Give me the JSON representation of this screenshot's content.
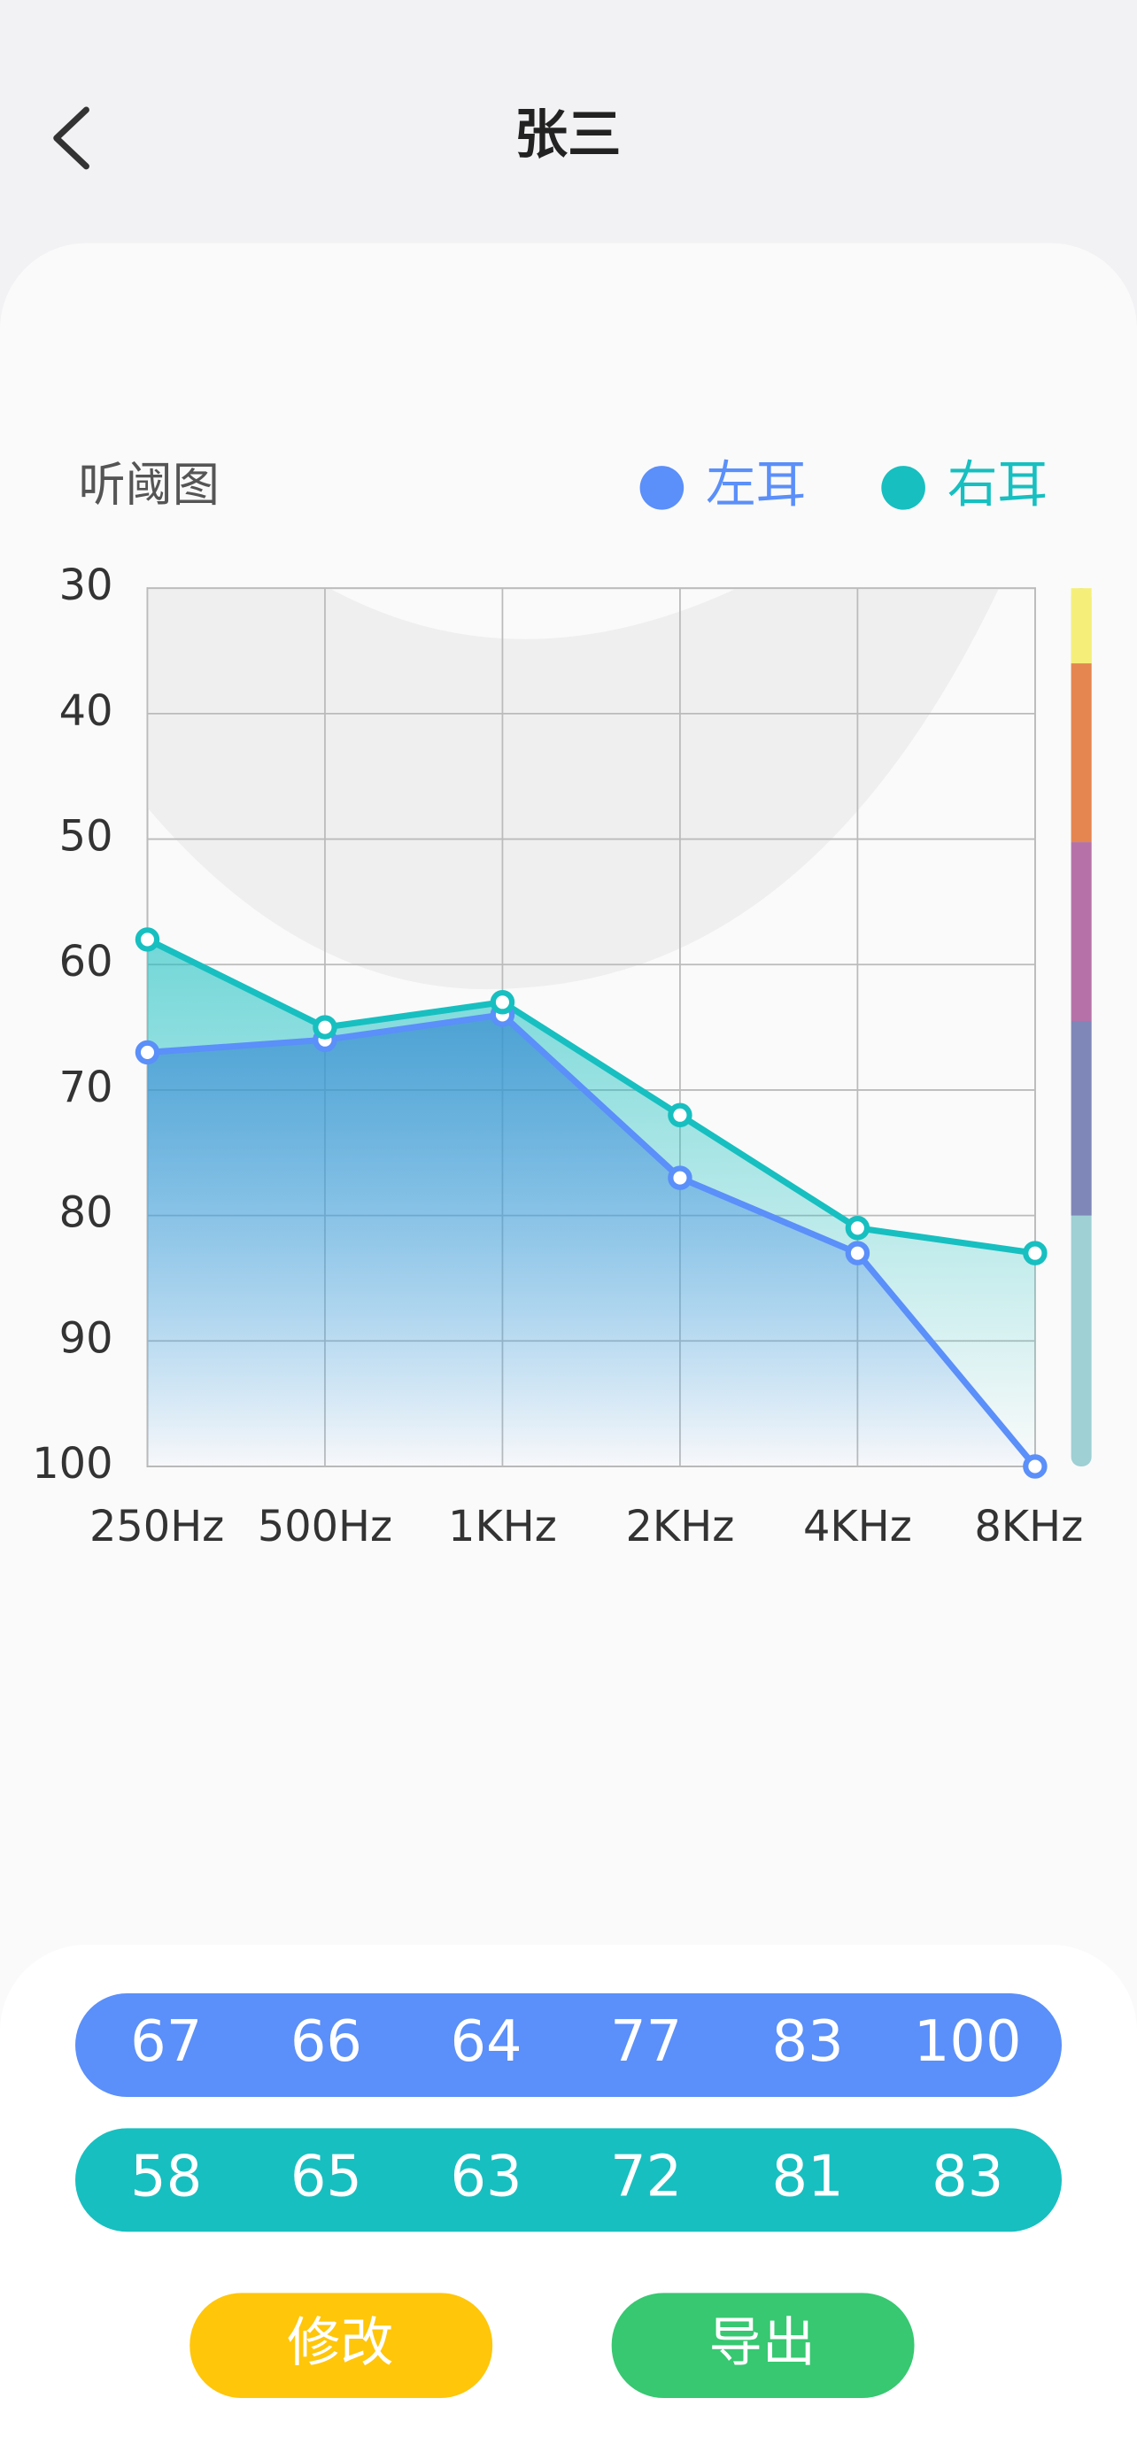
{
  "header": {
    "title": "张三"
  },
  "chart_data": {
    "type": "line",
    "title": "听阈图",
    "categories": [
      "250Hz",
      "500Hz",
      "1KHz",
      "2KHz",
      "4KHz",
      "8KHz"
    ],
    "series": [
      {
        "name": "左耳",
        "color": "#5b8ff9",
        "values": [
          67,
          66,
          64,
          77,
          83,
          100
        ]
      },
      {
        "name": "右耳",
        "color": "#17bfc0",
        "values": [
          58,
          65,
          63,
          72,
          81,
          83
        ]
      }
    ],
    "ylim": [
      30,
      100
    ],
    "yticks": [
      30,
      40,
      50,
      60,
      70,
      80,
      90,
      100
    ],
    "y_inverted": true,
    "grid": true,
    "legend": "top-right"
  },
  "buttons": [
    "修改",
    "导出"
  ]
}
